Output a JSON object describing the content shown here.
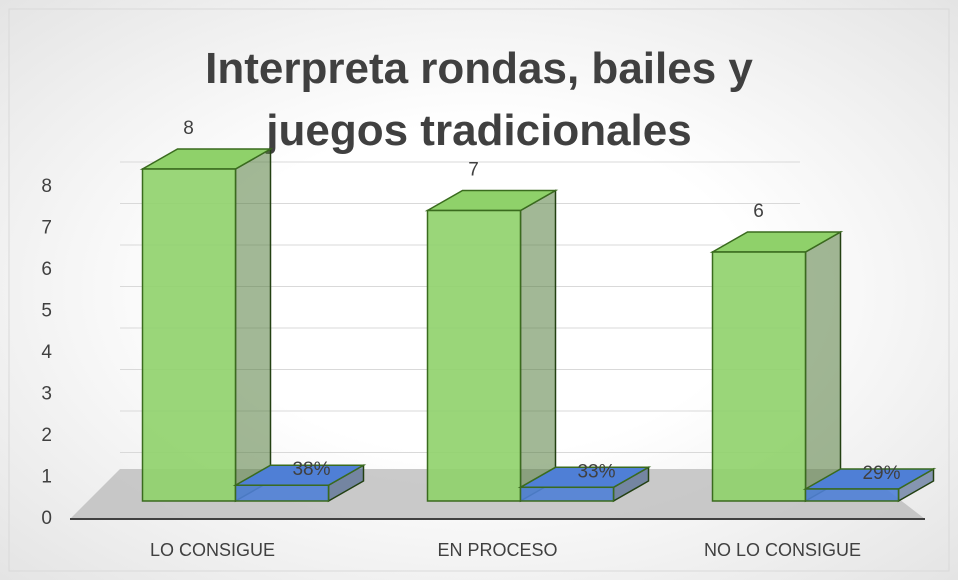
{
  "chart_data": {
    "type": "bar3d",
    "title": "Interpreta rondas, bailes y juegos tradicionales",
    "categories": [
      "LO CONSIGUE",
      "EN PROCESO",
      "NO LO CONSIGUE"
    ],
    "series": [
      {
        "color": "#8fd16a",
        "values": [
          8,
          7,
          6
        ]
      },
      {
        "color": "#4f7fd6",
        "values": [
          0.38,
          0.33,
          0.29
        ],
        "value_labels": [
          "38%",
          "33%",
          "29%"
        ]
      }
    ],
    "ylim": [
      0,
      8
    ],
    "yticks": [
      0,
      1,
      2,
      3,
      4,
      5,
      6,
      7,
      8
    ],
    "grid": true
  }
}
